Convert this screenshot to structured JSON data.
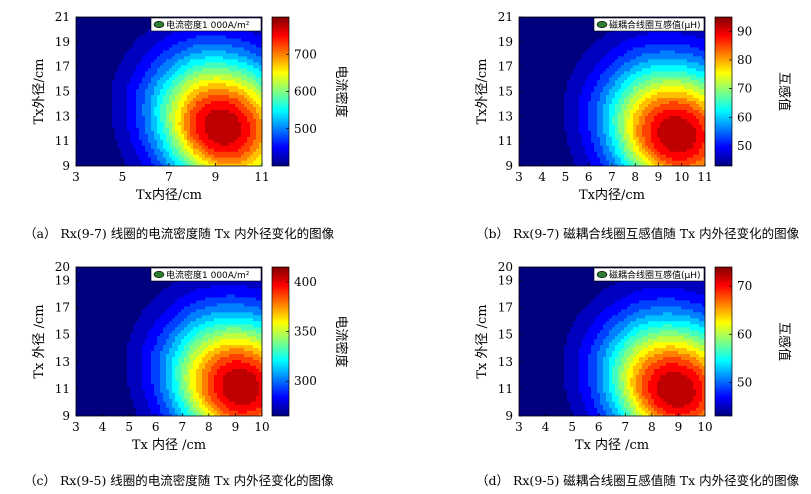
{
  "colors": {
    "colormap": [
      "#00007f",
      "#0000ff",
      "#0080ff",
      "#00ffff",
      "#80ff80",
      "#ffff00",
      "#ff8000",
      "#ff0000",
      "#7f0000"
    ],
    "legend_marker": "#2e7d32"
  },
  "chart_data": [
    {
      "id": "a",
      "type": "heatmap",
      "subtype": "filled-contour",
      "caption": "（a） Rx(9-7) 线圈的电流密度随 Tx 内外径变化的图像",
      "xlabel": "Tx内径/cm",
      "ylabel": "Tx外径/cm",
      "xlim": [
        3,
        11
      ],
      "ylim": [
        9,
        21
      ],
      "xticks": [
        3,
        5,
        7,
        9,
        11
      ],
      "yticks": [
        9,
        11,
        13,
        15,
        17,
        19,
        21
      ],
      "legend": "电流密度1 000A/m²",
      "legend_position": "top-right",
      "colorbar_label": "电流密度",
      "colorbar_range": [
        400,
        800
      ],
      "colorbar_ticks": [
        500,
        600,
        700
      ],
      "peak": {
        "x": 9.3,
        "y": 12.2,
        "value": 790
      },
      "min": {
        "x": 3.0,
        "y": 9.0,
        "value": 400
      }
    },
    {
      "id": "b",
      "type": "heatmap",
      "subtype": "filled-contour",
      "caption": "（b） Rx(9-7) 磁耦合线圈互感值随 Tx 内外径变化的图像",
      "xlabel": "Tx内径/cm",
      "ylabel": "Tx外径/cm",
      "xlim": [
        3,
        11
      ],
      "ylim": [
        9,
        21
      ],
      "xticks": [
        3,
        4,
        5,
        6,
        7,
        8,
        9,
        10,
        11
      ],
      "yticks": [
        9,
        11,
        13,
        15,
        17,
        19,
        21
      ],
      "legend": "磁耦合线圈互感值(μH)",
      "legend_position": "top-right",
      "colorbar_label": "互感值",
      "colorbar_range": [
        43,
        95
      ],
      "colorbar_ticks": [
        50,
        60,
        70,
        80,
        90
      ],
      "peak": {
        "x": 9.8,
        "y": 11.6,
        "value": 94
      },
      "min": {
        "x": 3.0,
        "y": 9.0,
        "value": 43
      }
    },
    {
      "id": "c",
      "type": "heatmap",
      "subtype": "filled-contour",
      "caption": "（c） Rx(9-5) 线圈的电流密度随 Tx 内外径变化的图像",
      "xlabel": "Tx 内径 /cm",
      "ylabel": "Tx 外径 /cm",
      "xlim": [
        3,
        10
      ],
      "ylim": [
        9,
        20
      ],
      "xticks": [
        3,
        4,
        5,
        6,
        7,
        8,
        9,
        10
      ],
      "yticks": [
        9,
        11,
        13,
        15,
        17,
        19,
        20
      ],
      "legend": "电流密度1 000A/m²",
      "legend_position": "top-right",
      "colorbar_label": "电流密度",
      "colorbar_range": [
        265,
        415
      ],
      "colorbar_ticks": [
        300,
        350,
        400
      ],
      "peak": {
        "x": 9.2,
        "y": 11.2,
        "value": 412
      },
      "min": {
        "x": 3.0,
        "y": 9.0,
        "value": 265
      }
    },
    {
      "id": "d",
      "type": "heatmap",
      "subtype": "filled-contour",
      "caption": "（d） Rx(9-5) 磁耦合线圈互感值随 Tx 内外径变化的图像",
      "xlabel": "Tx 内径 /cm",
      "ylabel": "Tx 外径 /cm",
      "xlim": [
        3,
        10
      ],
      "ylim": [
        9,
        20
      ],
      "xticks": [
        3,
        4,
        5,
        6,
        7,
        8,
        9,
        10
      ],
      "yticks": [
        9,
        11,
        13,
        15,
        17,
        19,
        20
      ],
      "legend": "磁耦合线圈互感值(μH)",
      "legend_position": "top-right",
      "colorbar_label": "互感值",
      "colorbar_range": [
        43,
        74
      ],
      "colorbar_ticks": [
        50,
        60,
        70
      ],
      "peak": {
        "x": 8.9,
        "y": 11.0,
        "value": 73
      },
      "min": {
        "x": 3.0,
        "y": 9.0,
        "value": 43
      }
    }
  ]
}
